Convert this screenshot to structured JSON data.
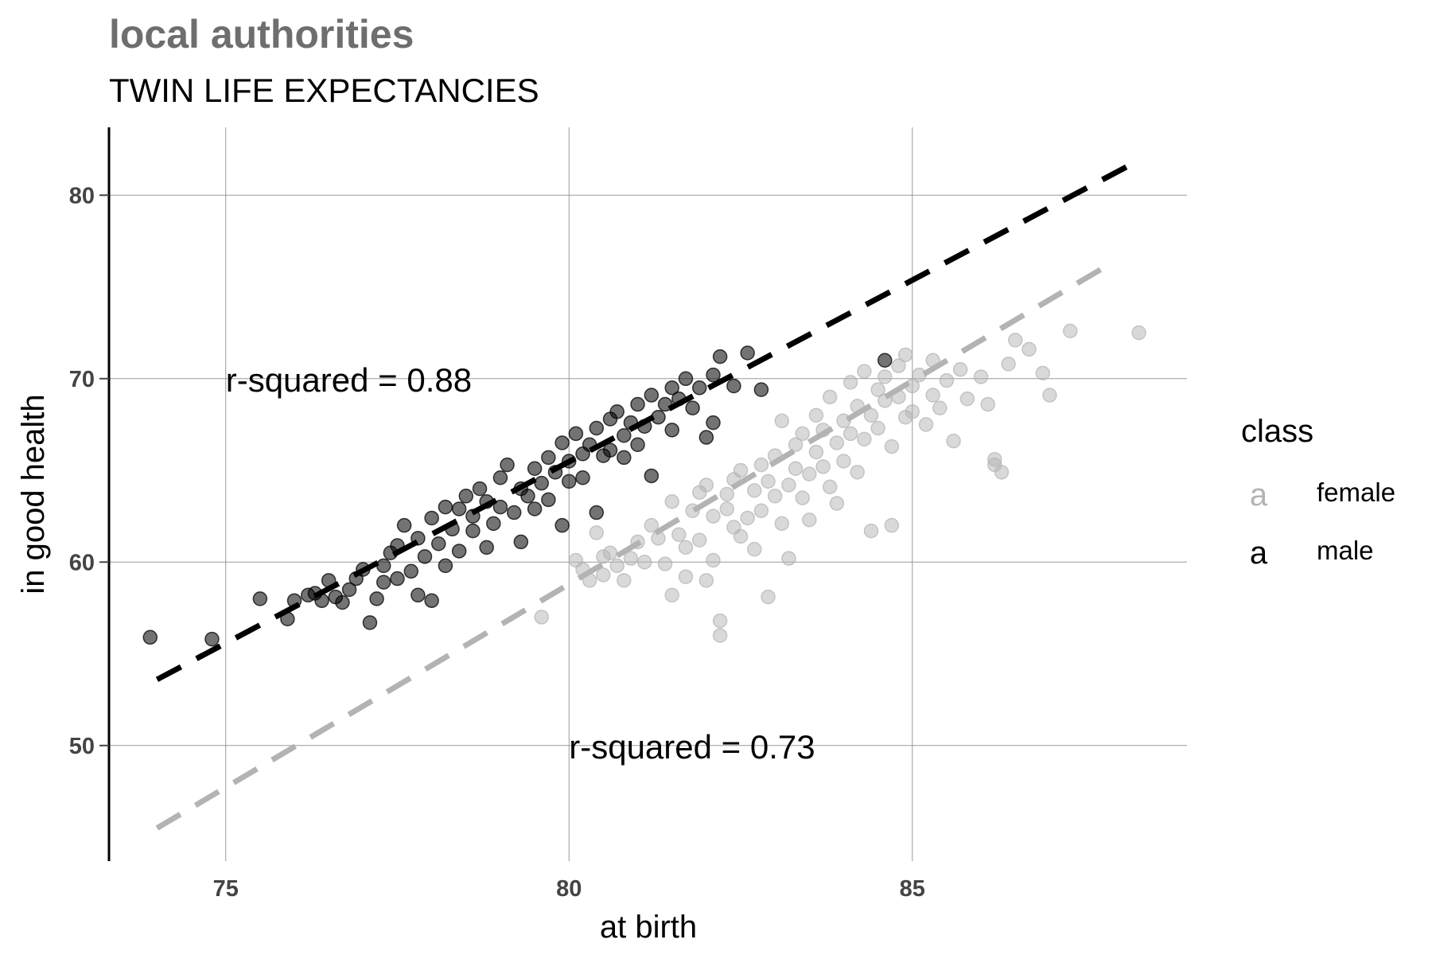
{
  "chart_data": {
    "type": "scatter",
    "title": "local authorities",
    "subtitle": "TWIN LIFE EXPECTANCIES",
    "xlabel": "at birth",
    "ylabel": "in good health",
    "xlim": [
      73.3,
      89.0
    ],
    "ylim": [
      43.7,
      83.7
    ],
    "x_ticks": [
      75,
      80,
      85
    ],
    "y_ticks": [
      50,
      60,
      70,
      80
    ],
    "grid": true,
    "legend": {
      "title": "class",
      "position": "right",
      "key_glyph": "a",
      "entries": [
        {
          "label": "female",
          "color": "#b3b3b3"
        },
        {
          "label": "male",
          "color": "#000000"
        }
      ]
    },
    "series": [
      {
        "name": "female",
        "color": "#b3b3b3",
        "point_opacity": 0.5,
        "trend": {
          "x": [
            74.0,
            87.9
          ],
          "y": [
            45.5,
            76.3
          ]
        },
        "annotation": {
          "text": "r-squared = 0.73",
          "x": 80.0,
          "y": 49.9
        },
        "points": [
          [
            79.6,
            57.0
          ],
          [
            80.1,
            60.1
          ],
          [
            80.2,
            59.6
          ],
          [
            80.3,
            59.0
          ],
          [
            80.4,
            61.6
          ],
          [
            80.5,
            60.3
          ],
          [
            80.5,
            59.3
          ],
          [
            80.6,
            60.5
          ],
          [
            80.7,
            59.8
          ],
          [
            80.8,
            59.0
          ],
          [
            80.9,
            60.2
          ],
          [
            81.0,
            61.1
          ],
          [
            81.1,
            60.0
          ],
          [
            81.2,
            62.0
          ],
          [
            81.3,
            61.3
          ],
          [
            81.4,
            59.9
          ],
          [
            81.5,
            58.2
          ],
          [
            81.5,
            63.3
          ],
          [
            81.6,
            61.5
          ],
          [
            81.7,
            60.8
          ],
          [
            81.7,
            59.2
          ],
          [
            81.8,
            62.8
          ],
          [
            81.9,
            61.2
          ],
          [
            81.9,
            63.8
          ],
          [
            82.0,
            59.0
          ],
          [
            82.0,
            64.2
          ],
          [
            82.1,
            62.5
          ],
          [
            82.1,
            60.1
          ],
          [
            82.2,
            56.8
          ],
          [
            82.2,
            56.0
          ],
          [
            82.3,
            63.7
          ],
          [
            82.3,
            62.9
          ],
          [
            82.4,
            61.9
          ],
          [
            82.4,
            64.5
          ],
          [
            82.5,
            61.4
          ],
          [
            82.5,
            65.0
          ],
          [
            82.6,
            62.4
          ],
          [
            82.7,
            63.9
          ],
          [
            82.7,
            60.7
          ],
          [
            82.8,
            65.3
          ],
          [
            82.8,
            62.8
          ],
          [
            82.9,
            64.4
          ],
          [
            82.9,
            58.1
          ],
          [
            83.0,
            63.6
          ],
          [
            83.0,
            65.8
          ],
          [
            83.1,
            62.1
          ],
          [
            83.1,
            67.7
          ],
          [
            83.2,
            64.2
          ],
          [
            83.2,
            60.2
          ],
          [
            83.3,
            65.1
          ],
          [
            83.3,
            66.4
          ],
          [
            83.4,
            63.5
          ],
          [
            83.4,
            67.0
          ],
          [
            83.5,
            64.8
          ],
          [
            83.5,
            62.3
          ],
          [
            83.6,
            66.0
          ],
          [
            83.6,
            68.0
          ],
          [
            83.7,
            65.2
          ],
          [
            83.7,
            67.2
          ],
          [
            83.8,
            64.1
          ],
          [
            83.8,
            69.0
          ],
          [
            83.9,
            66.5
          ],
          [
            83.9,
            63.2
          ],
          [
            84.0,
            67.7
          ],
          [
            84.0,
            65.5
          ],
          [
            84.1,
            69.8
          ],
          [
            84.1,
            67.0
          ],
          [
            84.2,
            64.9
          ],
          [
            84.2,
            68.5
          ],
          [
            84.3,
            66.7
          ],
          [
            84.3,
            70.4
          ],
          [
            84.4,
            68.0
          ],
          [
            84.4,
            61.7
          ],
          [
            84.5,
            69.4
          ],
          [
            84.5,
            67.3
          ],
          [
            84.6,
            70.1
          ],
          [
            84.6,
            68.8
          ],
          [
            84.7,
            66.3
          ],
          [
            84.7,
            62.0
          ],
          [
            84.8,
            70.7
          ],
          [
            84.8,
            69.0
          ],
          [
            84.9,
            67.9
          ],
          [
            84.9,
            71.3
          ],
          [
            85.0,
            69.6
          ],
          [
            85.0,
            68.2
          ],
          [
            85.1,
            70.2
          ],
          [
            85.2,
            67.5
          ],
          [
            85.3,
            69.1
          ],
          [
            85.3,
            71.0
          ],
          [
            85.4,
            68.4
          ],
          [
            85.5,
            69.9
          ],
          [
            85.6,
            66.6
          ],
          [
            85.7,
            70.5
          ],
          [
            85.8,
            68.9
          ],
          [
            86.0,
            70.1
          ],
          [
            86.1,
            68.6
          ],
          [
            86.2,
            65.6
          ],
          [
            86.2,
            65.3
          ],
          [
            86.3,
            64.9
          ],
          [
            86.4,
            70.8
          ],
          [
            86.5,
            72.1
          ],
          [
            86.7,
            71.6
          ],
          [
            86.9,
            70.3
          ],
          [
            87.0,
            69.1
          ],
          [
            87.3,
            72.6
          ],
          [
            88.3,
            72.5
          ]
        ]
      },
      {
        "name": "male",
        "color": "#000000",
        "point_opacity": 0.55,
        "trend": {
          "x": [
            74.0,
            88.3
          ],
          "y": [
            53.6,
            81.9
          ]
        },
        "annotation": {
          "text": "r-squared = 0.88",
          "x": 75.0,
          "y": 69.9
        },
        "points": [
          [
            73.9,
            55.9
          ],
          [
            74.8,
            55.8
          ],
          [
            75.5,
            58.0
          ],
          [
            75.9,
            56.9
          ],
          [
            76.0,
            57.9
          ],
          [
            76.2,
            58.2
          ],
          [
            76.3,
            58.3
          ],
          [
            76.4,
            57.9
          ],
          [
            76.5,
            59.0
          ],
          [
            76.6,
            58.1
          ],
          [
            76.7,
            57.8
          ],
          [
            76.8,
            58.5
          ],
          [
            76.9,
            59.1
          ],
          [
            77.0,
            59.6
          ],
          [
            77.1,
            56.7
          ],
          [
            77.2,
            58.0
          ],
          [
            77.3,
            59.8
          ],
          [
            77.3,
            58.9
          ],
          [
            77.4,
            60.5
          ],
          [
            77.5,
            59.1
          ],
          [
            77.5,
            60.9
          ],
          [
            77.6,
            62.0
          ],
          [
            77.7,
            59.5
          ],
          [
            77.8,
            61.3
          ],
          [
            77.8,
            58.2
          ],
          [
            77.9,
            60.3
          ],
          [
            78.0,
            62.4
          ],
          [
            78.0,
            57.9
          ],
          [
            78.1,
            61.0
          ],
          [
            78.2,
            63.0
          ],
          [
            78.2,
            59.8
          ],
          [
            78.3,
            61.8
          ],
          [
            78.4,
            62.9
          ],
          [
            78.4,
            60.6
          ],
          [
            78.5,
            63.6
          ],
          [
            78.6,
            61.7
          ],
          [
            78.6,
            62.5
          ],
          [
            78.7,
            64.0
          ],
          [
            78.8,
            60.8
          ],
          [
            78.8,
            63.3
          ],
          [
            78.9,
            62.1
          ],
          [
            79.0,
            64.6
          ],
          [
            79.0,
            63.0
          ],
          [
            79.1,
            65.3
          ],
          [
            79.2,
            62.7
          ],
          [
            79.3,
            64.0
          ],
          [
            79.3,
            61.1
          ],
          [
            79.4,
            63.6
          ],
          [
            79.5,
            65.1
          ],
          [
            79.5,
            62.9
          ],
          [
            79.6,
            64.3
          ],
          [
            79.7,
            65.7
          ],
          [
            79.7,
            63.4
          ],
          [
            79.8,
            64.9
          ],
          [
            79.9,
            66.5
          ],
          [
            79.9,
            62.0
          ],
          [
            80.0,
            65.5
          ],
          [
            80.0,
            64.4
          ],
          [
            80.1,
            67.0
          ],
          [
            80.2,
            65.9
          ],
          [
            80.2,
            64.6
          ],
          [
            80.3,
            66.4
          ],
          [
            80.4,
            67.3
          ],
          [
            80.4,
            62.7
          ],
          [
            80.5,
            65.8
          ],
          [
            80.6,
            67.8
          ],
          [
            80.6,
            66.1
          ],
          [
            80.7,
            68.2
          ],
          [
            80.8,
            65.7
          ],
          [
            80.8,
            66.9
          ],
          [
            80.9,
            67.6
          ],
          [
            81.0,
            68.6
          ],
          [
            81.0,
            66.4
          ],
          [
            81.1,
            67.4
          ],
          [
            81.2,
            69.1
          ],
          [
            81.2,
            64.7
          ],
          [
            81.3,
            67.9
          ],
          [
            81.4,
            68.6
          ],
          [
            81.5,
            69.5
          ],
          [
            81.5,
            67.2
          ],
          [
            81.6,
            68.9
          ],
          [
            81.7,
            70.0
          ],
          [
            81.8,
            68.4
          ],
          [
            81.9,
            69.5
          ],
          [
            82.0,
            66.8
          ],
          [
            82.1,
            70.2
          ],
          [
            82.1,
            67.6
          ],
          [
            82.2,
            71.2
          ],
          [
            82.4,
            69.6
          ],
          [
            82.6,
            71.4
          ],
          [
            82.8,
            69.4
          ],
          [
            84.6,
            71.0
          ]
        ]
      }
    ]
  }
}
